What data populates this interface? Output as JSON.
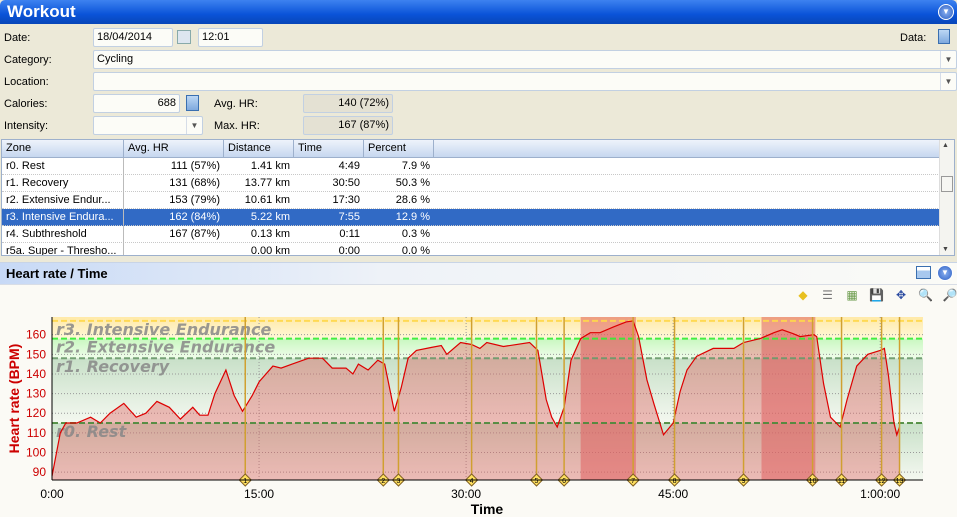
{
  "window": {
    "title": "Workout"
  },
  "form": {
    "date_label": "Date:",
    "date": "18/04/2014",
    "time": "12:01",
    "data_label": "Data:",
    "category_label": "Category:",
    "category": "Cycling",
    "location_label": "Location:",
    "location": "",
    "calories_label": "Calories:",
    "calories": "688",
    "avg_hr_label": "Avg. HR:",
    "avg_hr": "140 (72%)",
    "intensity_label": "Intensity:",
    "intensity": "",
    "max_hr_label": "Max. HR:",
    "max_hr": "167 (87%)"
  },
  "zones_table": {
    "columns": [
      "Zone",
      "Avg. HR",
      "Distance",
      "Time",
      "Percent"
    ],
    "rows": [
      [
        "r0. Rest",
        "111 (57%)",
        "1.41 km",
        "4:49",
        "7.9 %"
      ],
      [
        "r1. Recovery",
        "131 (68%)",
        "13.77 km",
        "30:50",
        "50.3 %"
      ],
      [
        "r2. Extensive Endur...",
        "153 (79%)",
        "10.61 km",
        "17:30",
        "28.6 %"
      ],
      [
        "r3. Intensive Endura...",
        "162 (84%)",
        "5.22 km",
        "7:55",
        "12.9 %"
      ],
      [
        "r4. Subthreshold",
        "167 (87%)",
        "0.13 km",
        "0:11",
        "0.3 %"
      ],
      [
        "r5a. Super - Thresho...",
        "",
        "0.00 km",
        "0:00",
        "0.0 %"
      ]
    ],
    "selected_row": 3
  },
  "chart_panel": {
    "title": "Heart rate / Time",
    "toolbar": [
      "marker-icon",
      "zones-icon",
      "chart-type-icon",
      "save-icon",
      "fit-icon",
      "zoom-out-icon",
      "zoom-in-icon"
    ]
  },
  "chart_data": {
    "type": "area",
    "xlabel": "Time",
    "ylabel": "Heart rate (BPM)",
    "xlim": [
      0,
      63.1
    ],
    "ylim": [
      86,
      169
    ],
    "xticks": [
      {
        "v": 0,
        "label": "0:00"
      },
      {
        "v": 15,
        "label": "15:00"
      },
      {
        "v": 30,
        "label": "30:00"
      },
      {
        "v": 45,
        "label": "45:00"
      },
      {
        "v": 60,
        "label": "1:00:00"
      }
    ],
    "yticks": [
      90,
      100,
      110,
      120,
      130,
      140,
      150,
      160
    ],
    "zones": [
      {
        "label": "r0. Rest",
        "from": 86,
        "to": 115,
        "color": "#4a8a3a"
      },
      {
        "label": "r1. Recovery",
        "from": 115,
        "to": 148,
        "color": "#6a9a6a"
      },
      {
        "label": "r2. Extensive Endurance",
        "from": 148,
        "to": 158,
        "color": "#33ee33"
      },
      {
        "label": "r3. Intensive Endurance",
        "from": 158,
        "to": 167,
        "color": "#ffd84a"
      }
    ],
    "highlighted_ranges": [
      [
        38.3,
        42.3
      ],
      [
        51.4,
        55.3
      ]
    ],
    "laps": [
      {
        "n": "1",
        "t": 14.0
      },
      {
        "n": "2",
        "t": 24.0
      },
      {
        "n": "3",
        "t": 25.1
      },
      {
        "n": "4",
        "t": 30.4
      },
      {
        "n": "5",
        "t": 35.1
      },
      {
        "n": "6",
        "t": 37.1
      },
      {
        "n": "7",
        "t": 42.1
      },
      {
        "n": "8",
        "t": 45.1
      },
      {
        "n": "9",
        "t": 50.1
      },
      {
        "n": "10",
        "t": 55.1
      },
      {
        "n": "11",
        "t": 57.2
      },
      {
        "n": "12",
        "t": 60.1
      },
      {
        "n": "13",
        "t": 61.4
      }
    ],
    "series": [
      {
        "color": "#dd0000",
        "points": [
          [
            0,
            88
          ],
          [
            0.6,
            110
          ],
          [
            1,
            115
          ],
          [
            1.8,
            115
          ],
          [
            2.8,
            118
          ],
          [
            3.5,
            115
          ],
          [
            4.2,
            120
          ],
          [
            5.2,
            125
          ],
          [
            6.1,
            118
          ],
          [
            6.8,
            120
          ],
          [
            7.6,
            126
          ],
          [
            8.5,
            123
          ],
          [
            9.3,
            117
          ],
          [
            10.2,
            123
          ],
          [
            10.7,
            119
          ],
          [
            11.3,
            119
          ],
          [
            11.8,
            130
          ],
          [
            12.6,
            142
          ],
          [
            13.2,
            129
          ],
          [
            13.8,
            121
          ],
          [
            14.5,
            129
          ],
          [
            15,
            136
          ],
          [
            16,
            144
          ],
          [
            16.6,
            143
          ],
          [
            17.4,
            145
          ],
          [
            18.6,
            148
          ],
          [
            19.6,
            148
          ],
          [
            20.3,
            143
          ],
          [
            21.3,
            143
          ],
          [
            21.8,
            140
          ],
          [
            22.2,
            145
          ],
          [
            22.9,
            142
          ],
          [
            23.6,
            147
          ],
          [
            24.1,
            145
          ],
          [
            24.8,
            121
          ],
          [
            25.3,
            133
          ],
          [
            25.8,
            148
          ],
          [
            26.4,
            152
          ],
          [
            27.5,
            153.5
          ],
          [
            28.2,
            154.5
          ],
          [
            28.6,
            150
          ],
          [
            29.6,
            156
          ],
          [
            30.4,
            155
          ],
          [
            31,
            153
          ],
          [
            31.5,
            156
          ],
          [
            32.7,
            154
          ],
          [
            34.6,
            156
          ],
          [
            35.2,
            152
          ],
          [
            35.8,
            127
          ],
          [
            36.2,
            118
          ],
          [
            36.6,
            113
          ],
          [
            37.1,
            123
          ],
          [
            37.6,
            147
          ],
          [
            38.3,
            158
          ],
          [
            39,
            161
          ],
          [
            39.7,
            161
          ],
          [
            40.7,
            164
          ],
          [
            41.6,
            166.5
          ],
          [
            42.1,
            167
          ],
          [
            42.5,
            159
          ],
          [
            43.1,
            137
          ],
          [
            43.6,
            125
          ],
          [
            44.3,
            109
          ],
          [
            45,
            115
          ],
          [
            45.5,
            131
          ],
          [
            46,
            142
          ],
          [
            46.7,
            149
          ],
          [
            47.9,
            153
          ],
          [
            49.4,
            153
          ],
          [
            50.1,
            156
          ],
          [
            51.3,
            158
          ],
          [
            52.3,
            161
          ],
          [
            52.9,
            162.5
          ],
          [
            53.7,
            160.5
          ],
          [
            54.2,
            159
          ],
          [
            55.2,
            160
          ],
          [
            55.4,
            159
          ],
          [
            55.9,
            135
          ],
          [
            56.4,
            118
          ],
          [
            57.1,
            113
          ],
          [
            57.6,
            127
          ],
          [
            58.3,
            144
          ],
          [
            59.1,
            150
          ],
          [
            60,
            152
          ],
          [
            60.3,
            153
          ],
          [
            60.6,
            139
          ],
          [
            61,
            115
          ],
          [
            61.2,
            109
          ],
          [
            61.4,
            113
          ]
        ]
      }
    ]
  },
  "colors": {
    "accent": "#0a53d8",
    "selection": "#316ac5",
    "hr_line": "#dd0000"
  }
}
